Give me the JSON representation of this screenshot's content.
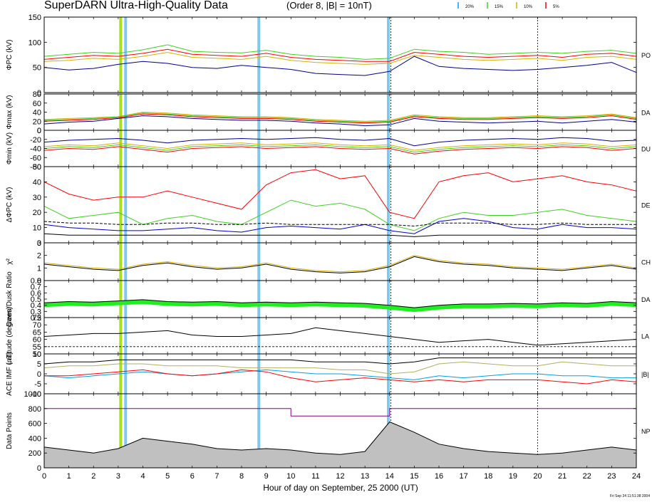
{
  "header": {
    "title": "SuperDARN Ultra-High-Quality Data",
    "subtitle": "(Order 8, |B| = 10nT)",
    "legend": [
      {
        "label": "20%",
        "color": "#00a0ff"
      },
      {
        "label": "15%",
        "color": "#40d020"
      },
      {
        "label": "10%",
        "color": "#d8b000"
      },
      {
        "label": "5%",
        "color": "#ff0000"
      }
    ]
  },
  "footer": {
    "xlabel": "Hour of day on September, 25 2000 (UT)",
    "timestamp": "Fri Sep 24 11:51:38 2004"
  },
  "highlights": [
    {
      "hour": 3.1,
      "color": "#a8e020"
    },
    {
      "hour": 3.3,
      "color": "#80c8f0"
    },
    {
      "hour": 8.7,
      "color": "#80c8f0"
    },
    {
      "hour": 13.95,
      "color": "#80c8f0"
    }
  ],
  "dashed_markers": [
    14.05,
    20.0
  ],
  "chart_data": {
    "type": "line",
    "x_range": [
      0,
      24
    ],
    "x_ticks": [
      "0",
      "1",
      "2",
      "3",
      "4",
      "5",
      "6",
      "7",
      "8",
      "9",
      "10",
      "11",
      "12",
      "13",
      "14",
      "15",
      "16",
      "17",
      "18",
      "19",
      "20",
      "21",
      "22",
      "23",
      "24"
    ],
    "panels": [
      {
        "id": "phipc",
        "ylabel": "ΦPC (kV)",
        "right_label": "PO",
        "ylim": [
          0,
          150
        ],
        "yticks": [
          "0",
          "50",
          "100",
          "150"
        ],
        "series": [
          {
            "color": "#40d020",
            "values": [
              72,
              76,
              80,
              78,
              85,
              95,
              82,
              80,
              79,
              84,
              76,
              72,
              70,
              66,
              68,
              86,
              82,
              80,
              76,
              78,
              80,
              78,
              82,
              84,
              78
            ]
          },
          {
            "color": "#ff0000",
            "values": [
              66,
              70,
              74,
              72,
              78,
              86,
              76,
              74,
              72,
              78,
              70,
              66,
              64,
              62,
              62,
              80,
              76,
              72,
              70,
              72,
              74,
              70,
              76,
              78,
              72
            ]
          },
          {
            "color": "#d8b000",
            "values": [
              62,
              64,
              68,
              66,
              72,
              80,
              70,
              68,
              66,
              72,
              64,
              60,
              58,
              56,
              58,
              74,
              70,
              66,
              64,
              66,
              68,
              64,
              70,
              72,
              66
            ]
          },
          {
            "color": "#00008b",
            "values": [
              50,
              45,
              48,
              56,
              62,
              58,
              50,
              48,
              54,
              50,
              46,
              38,
              36,
              34,
              42,
              72,
              52,
              48,
              46,
              44,
              46,
              50,
              54,
              60,
              40
            ]
          }
        ]
      },
      {
        "id": "phimax",
        "ylabel": "Φmax (kV)",
        "right_label": "DA",
        "ylim": [
          0,
          80
        ],
        "yticks": [
          "0",
          "20",
          "40",
          "60",
          "80"
        ],
        "series": [
          {
            "color": "#d8b000",
            "values": [
              24,
              26,
              28,
              30,
              40,
              38,
              34,
              32,
              30,
              30,
              28,
              24,
              22,
              20,
              22,
              34,
              30,
              28,
              28,
              30,
              32,
              30,
              32,
              36,
              28
            ]
          },
          {
            "color": "#40d020",
            "values": [
              22,
              24,
              26,
              30,
              38,
              36,
              32,
              30,
              28,
              28,
              26,
              22,
              20,
              18,
              20,
              32,
              28,
              26,
              26,
              28,
              30,
              28,
              30,
              34,
              26
            ]
          },
          {
            "color": "#ff0000",
            "values": [
              20,
              22,
              24,
              28,
              36,
              34,
              30,
              28,
              26,
              26,
              24,
              20,
              18,
              16,
              18,
              30,
              26,
              24,
              24,
              26,
              28,
              26,
              28,
              32,
              24
            ]
          },
          {
            "color": "#00008b",
            "values": [
              14,
              18,
              20,
              26,
              32,
              30,
              26,
              24,
              22,
              22,
              20,
              16,
              14,
              10,
              12,
              26,
              20,
              18,
              16,
              18,
              20,
              16,
              20,
              24,
              18
            ]
          }
        ]
      },
      {
        "id": "phimin",
        "ylabel": "Φmin (kV)",
        "right_label": "DU",
        "ylim": [
          -80,
          0
        ],
        "yticks": [
          "-80",
          "-60",
          "-40",
          "-20",
          "0"
        ],
        "series": [
          {
            "color": "#ff0000",
            "values": [
              -44,
              -40,
              -42,
              -36,
              -42,
              -48,
              -40,
              -38,
              -36,
              -40,
              -38,
              -36,
              -40,
              -42,
              -40,
              -52,
              -46,
              -42,
              -40,
              -38,
              -40,
              -36,
              -38,
              -44,
              -40
            ]
          },
          {
            "color": "#40d020",
            "values": [
              -40,
              -36,
              -38,
              -32,
              -38,
              -44,
              -36,
              -34,
              -32,
              -36,
              -34,
              -32,
              -36,
              -38,
              -36,
              -48,
              -42,
              -38,
              -36,
              -34,
              -36,
              -32,
              -34,
              -40,
              -36
            ]
          },
          {
            "color": "#d8b000",
            "values": [
              -36,
              -32,
              -34,
              -28,
              -34,
              -40,
              -32,
              -30,
              -28,
              -32,
              -30,
              -28,
              -32,
              -34,
              -32,
              -44,
              -38,
              -34,
              -32,
              -30,
              -32,
              -28,
              -30,
              -36,
              -32
            ]
          },
          {
            "color": "#00008b",
            "values": [
              -26,
              -22,
              -20,
              -18,
              -22,
              -28,
              -22,
              -20,
              -18,
              -20,
              -18,
              -16,
              -20,
              -22,
              -18,
              -34,
              -26,
              -22,
              -20,
              -18,
              -20,
              -16,
              -18,
              -24,
              -22
            ]
          }
        ]
      },
      {
        "id": "dphipc",
        "ylabel": "ΔΦPC (kV)",
        "right_label": "DE",
        "ylim": [
          0,
          50
        ],
        "yticks": [
          "0",
          "10",
          "20",
          "30",
          "40",
          "50"
        ],
        "series": [
          {
            "color": "#ff0000",
            "values": [
              40,
              32,
              28,
              30,
              30,
              34,
              30,
              26,
              22,
              38,
              46,
              48,
              42,
              44,
              20,
              16,
              40,
              44,
              46,
              40,
              42,
              44,
              40,
              38,
              34
            ]
          },
          {
            "color": "#40d020",
            "values": [
              24,
              16,
              18,
              20,
              12,
              16,
              18,
              14,
              12,
              20,
              28,
              24,
              26,
              22,
              12,
              8,
              16,
              20,
              18,
              18,
              20,
              22,
              18,
              16,
              14
            ]
          },
          {
            "color": "#0000cc",
            "values": [
              12,
              10,
              9,
              8,
              8,
              9,
              10,
              8,
              7,
              10,
              11,
              10,
              9,
              12,
              8,
              6,
              14,
              16,
              14,
              10,
              9,
              12,
              10,
              10,
              9
            ]
          },
          {
            "color": "#000000",
            "dashed": true,
            "values": [
              14,
              13,
              13,
              12,
              12,
              13,
              13,
              12,
              12,
              13,
              12,
              12,
              12,
              12,
              12,
              11,
              13,
              13,
              13,
              12,
              12,
              13,
              12,
              12,
              12
            ]
          },
          {
            "color": "#000000",
            "values": [
              6,
              5,
              5,
              5,
              5,
              5,
              5,
              5,
              5,
              5,
              5,
              5,
              5,
              5,
              5,
              4,
              5,
              5,
              5,
              5,
              5,
              5,
              5,
              5,
              5
            ]
          }
        ]
      },
      {
        "id": "chi2",
        "ylabel": "χ²",
        "right_label": "CH",
        "ylim": [
          0,
          3
        ],
        "yticks": [
          "0",
          "1",
          "2",
          "3"
        ],
        "series": [
          {
            "color": "#d8b000",
            "values": [
              1.4,
              1.2,
              1.0,
              0.9,
              1.3,
              1.5,
              1.2,
              1.0,
              1.1,
              1.4,
              1.0,
              0.8,
              0.7,
              0.8,
              1.2,
              2.0,
              1.6,
              1.4,
              1.3,
              1.1,
              1.0,
              0.9,
              1.1,
              1.3,
              1.0
            ]
          },
          {
            "color": "#000000",
            "values": [
              1.3,
              1.1,
              0.9,
              0.8,
              1.2,
              1.4,
              1.1,
              0.9,
              1.0,
              1.3,
              0.9,
              0.7,
              0.6,
              0.7,
              1.1,
              1.9,
              1.5,
              1.3,
              1.2,
              1.0,
              0.9,
              0.8,
              1.0,
              1.2,
              0.9
            ]
          }
        ]
      },
      {
        "id": "ratio",
        "ylabel": "Dawn/Dusk Ratio",
        "right_label": "DA",
        "ylim": [
          0.2,
          0.8
        ],
        "yticks": [
          "0.2",
          "0.3",
          "0.4",
          "0.5",
          "0.6",
          "0.7",
          "0.8"
        ],
        "fill_color": "#20ee20",
        "series": [
          {
            "color": "#000000",
            "values": [
              0.44,
              0.46,
              0.45,
              0.47,
              0.49,
              0.46,
              0.45,
              0.46,
              0.44,
              0.45,
              0.44,
              0.45,
              0.44,
              0.43,
              0.4,
              0.36,
              0.4,
              0.42,
              0.42,
              0.43,
              0.42,
              0.44,
              0.43,
              0.46,
              0.44
            ]
          }
        ]
      },
      {
        "id": "latitude",
        "ylabel": "Latitude (degrees)",
        "right_label": "LA",
        "ylim": [
          50,
          75
        ],
        "yticks": [
          "50",
          "55",
          "60",
          "65",
          "70",
          "75"
        ],
        "ref_line": 55,
        "series": [
          {
            "color": "#000000",
            "values": [
              62,
              63,
              64,
              64,
              65,
              66,
              63,
              62,
              62,
              63,
              64,
              68,
              66,
              64,
              62,
              60,
              58,
              59,
              60,
              58,
              56,
              57,
              58,
              59,
              60
            ]
          }
        ]
      },
      {
        "id": "imf",
        "ylabel": "ACE IMF (nT)",
        "right_label": "|B|",
        "ylim": [
          -10,
          10
        ],
        "yticks": [
          "-10",
          "-5",
          "0",
          "5",
          "10"
        ],
        "series": [
          {
            "color": "#000000",
            "values": [
              5,
              6,
              6,
              7,
              7,
              7,
              7,
              7,
              7,
              7,
              7,
              6,
              6,
              6,
              5,
              6,
              8,
              8,
              8,
              8,
              8,
              8,
              8,
              8,
              8
            ]
          },
          {
            "color": "#b0b060",
            "values": [
              3,
              4,
              4,
              5,
              5,
              4,
              4,
              4,
              3,
              3,
              3,
              3,
              2,
              2,
              0,
              1,
              5,
              6,
              5,
              4,
              4,
              6,
              5,
              4,
              4
            ]
          },
          {
            "color": "#00a0e0",
            "values": [
              -1,
              -2,
              -1,
              0,
              1,
              0,
              -1,
              0,
              1,
              2,
              1,
              0,
              0,
              -1,
              -2,
              -3,
              -1,
              -2,
              -1,
              0,
              0,
              -1,
              -1,
              -2,
              -2
            ]
          },
          {
            "color": "#ff0000",
            "values": [
              -1,
              -1,
              0,
              1,
              2,
              0,
              -1,
              0,
              2,
              1,
              -2,
              -4,
              -3,
              -2,
              -3,
              -4,
              -3,
              -4,
              -3,
              -3,
              -3,
              -4,
              -5,
              -3,
              -4
            ]
          }
        ]
      },
      {
        "id": "datapoints",
        "ylabel": "Data Points",
        "right_label": "NP",
        "ylim": [
          0,
          1000
        ],
        "yticks": [
          "0",
          "200",
          "400",
          "600",
          "800",
          "1000"
        ],
        "area": true,
        "series": [
          {
            "color": "#000000",
            "fill": "#c0c0c0",
            "values": [
              280,
              240,
              200,
              260,
              400,
              360,
              320,
              260,
              240,
              260,
              240,
              200,
              180,
              220,
              620,
              480,
              320,
              260,
              220,
              200,
              180,
              200,
              240,
              280,
              240
            ]
          },
          {
            "color": "#800080",
            "step": true,
            "values": [
              800,
              800,
              800,
              800,
              800,
              800,
              800,
              800,
              800,
              800,
              700,
              700,
              700,
              700,
              800,
              800,
              800,
              800,
              800,
              800,
              800,
              800,
              800,
              800,
              800
            ]
          }
        ]
      }
    ]
  }
}
